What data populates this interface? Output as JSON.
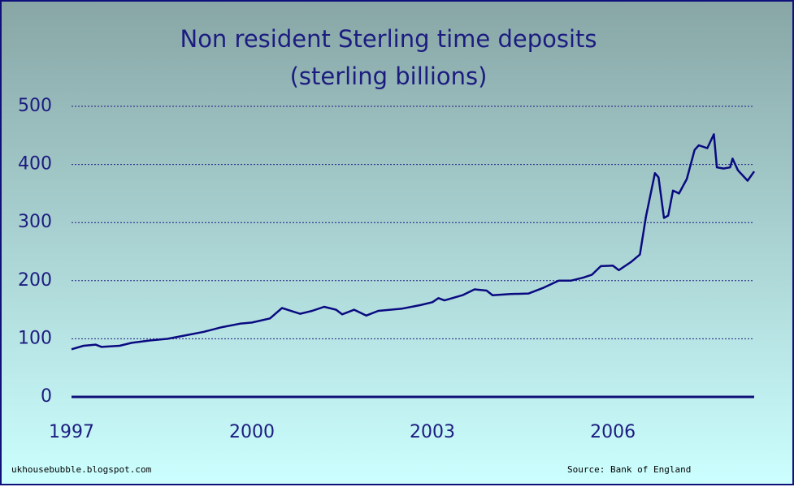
{
  "chart_data": {
    "type": "line",
    "title": "Non resident Sterling time deposits",
    "subtitle": "(sterling billions)",
    "source_left": "ukhousebubble.blogspot.com",
    "source_right": "Source: Bank of England",
    "x": [
      1997.0,
      1997.2,
      1997.4,
      1997.5,
      1997.8,
      1998.0,
      1998.3,
      1998.6,
      1998.9,
      1999.2,
      1999.5,
      1999.8,
      2000.0,
      2000.3,
      2000.5,
      2000.8,
      2001.0,
      2001.2,
      2001.4,
      2001.5,
      2001.7,
      2001.9,
      2002.1,
      2002.5,
      2002.8,
      2003.0,
      2003.1,
      2003.2,
      2003.5,
      2003.7,
      2003.9,
      2004.0,
      2004.3,
      2004.6,
      2004.85,
      2005.1,
      2005.3,
      2005.5,
      2005.65,
      2005.8,
      2006.0,
      2006.1,
      2006.3,
      2006.45,
      2006.55,
      2006.7,
      2006.76,
      2006.85,
      2006.92,
      2007.0,
      2007.1,
      2007.23,
      2007.36,
      2007.43,
      2007.57,
      2007.68,
      2007.73,
      2007.84,
      2007.95,
      2007.99,
      2008.08,
      2008.24,
      2008.35
    ],
    "series": [
      {
        "name": "Non resident Sterling time deposits",
        "color": "#0a0a80",
        "values": [
          82,
          88,
          90,
          86,
          88,
          93,
          97,
          100,
          106,
          112,
          120,
          126,
          128,
          135,
          153,
          143,
          148,
          155,
          150,
          142,
          150,
          140,
          148,
          152,
          158,
          163,
          170,
          166,
          175,
          185,
          183,
          175,
          177,
          178,
          188,
          200,
          200,
          205,
          210,
          225,
          226,
          218,
          232,
          245,
          310,
          385,
          378,
          308,
          312,
          355,
          350,
          375,
          425,
          433,
          428,
          452,
          395,
          393,
          395,
          410,
          390,
          372,
          388
        ]
      }
    ],
    "xlim": [
      1997,
      2008.35
    ],
    "xticks": [
      1997,
      2000,
      2003,
      2006
    ],
    "ylim": [
      0,
      500
    ],
    "yticks": [
      0,
      100,
      200,
      300,
      400,
      500
    ],
    "grid": true
  }
}
